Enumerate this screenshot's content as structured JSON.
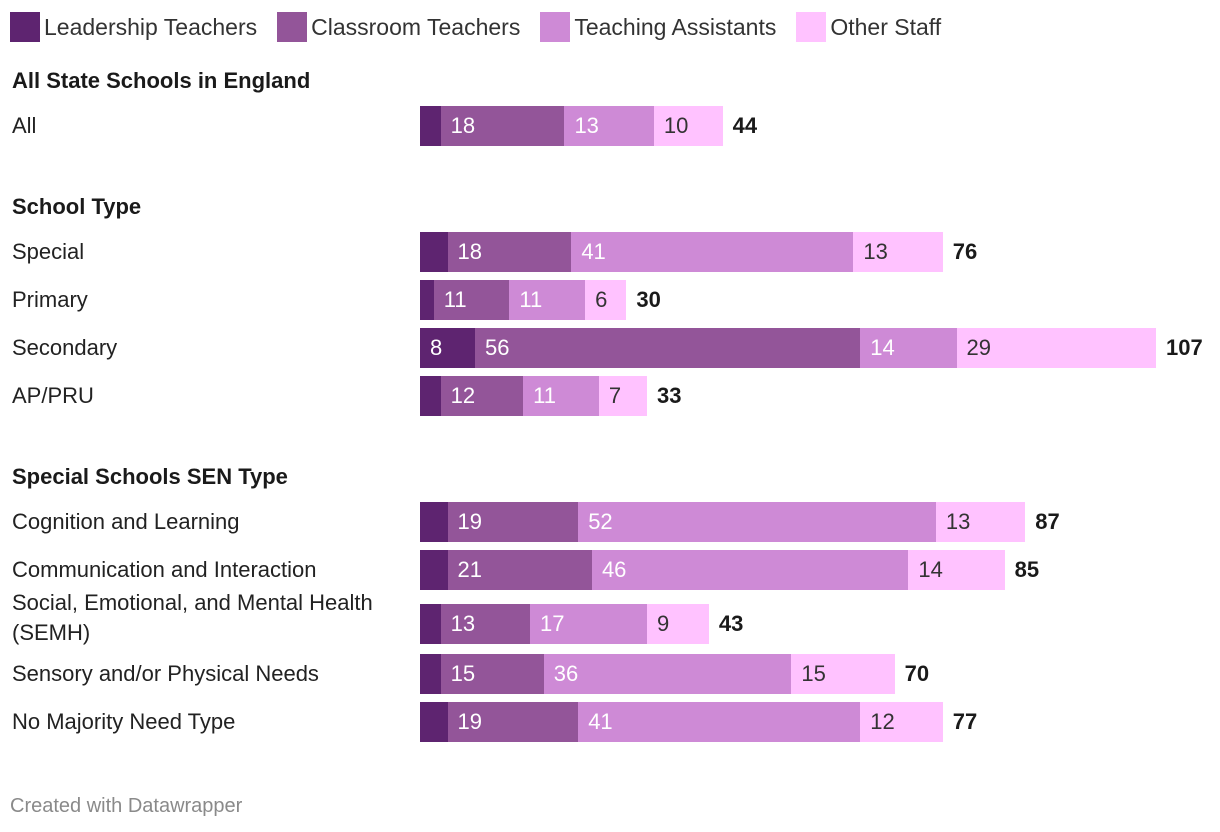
{
  "chart_data": {
    "type": "bar",
    "orientation": "horizontal",
    "stacked": true,
    "series": [
      {
        "name": "Leadership Teachers",
        "color": "#5e2470"
      },
      {
        "name": "Classroom Teachers",
        "color": "#935599"
      },
      {
        "name": "Teaching Assistants",
        "color": "#ce8ad6"
      },
      {
        "name": "Other Staff",
        "color": "#ffc2ff"
      }
    ],
    "groups": [
      {
        "title": "All State Schools in England",
        "rows": [
          {
            "label": "All",
            "values": [
              3,
              18,
              13,
              10
            ],
            "total": "44"
          }
        ]
      },
      {
        "title": "School Type",
        "rows": [
          {
            "label": "Special",
            "values": [
              4,
              18,
              41,
              13
            ],
            "total": "76"
          },
          {
            "label": "Primary",
            "values": [
              2,
              11,
              11,
              6
            ],
            "total": "30"
          },
          {
            "label": "Secondary",
            "values": [
              8,
              56,
              14,
              29
            ],
            "total": "107"
          },
          {
            "label": "AP/PRU",
            "values": [
              3,
              12,
              11,
              7
            ],
            "total": "33"
          }
        ]
      },
      {
        "title": "Special Schools SEN Type",
        "rows": [
          {
            "label": "Cognition and Learning",
            "values": [
              4,
              19,
              52,
              13
            ],
            "total": "87"
          },
          {
            "label": "Communication and Interaction",
            "values": [
              4,
              21,
              46,
              14
            ],
            "total": "85"
          },
          {
            "label": "Social, Emotional, and Mental Health (SEMH)",
            "values": [
              3,
              13,
              17,
              9
            ],
            "total": "43"
          },
          {
            "label": "Sensory and/or Physical Needs",
            "values": [
              3,
              15,
              36,
              15
            ],
            "total": "70"
          },
          {
            "label": "No Majority Need Type",
            "values": [
              4,
              19,
              41,
              12
            ],
            "total": "77"
          }
        ]
      }
    ],
    "label_threshold": 5,
    "xlim": [
      0,
      107
    ]
  },
  "footer": "Created with Datawrapper"
}
